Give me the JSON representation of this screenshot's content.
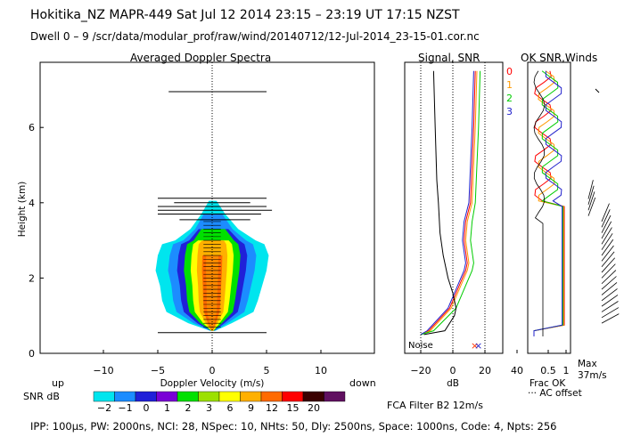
{
  "header": {
    "line1": "Hokitika_NZ   MAPR-449   Sat Jul 12 2014 23:15 – 23:19 UT 17:15 NZST",
    "line2": "Dwell   0 –  9    /scr/data/modular_prof/raw/wind/20140712/12-Jul-2014_23-15-01.cor.nc"
  },
  "footer": {
    "params": "IPP: 100μs,  PW: 2000ns,  NCI:  28,  NSpec: 10,  NHts: 50,  Dly: 2500ns,  Space: 1000ns,  Code: 4,  Npts: 256",
    "filter": "FCA Filter B2 12m/s"
  },
  "colorbar": {
    "label": "SNR dB",
    "values": [
      "−2",
      "−1",
      "0",
      "1",
      "2",
      "3",
      "6",
      "9",
      "12",
      "15",
      "20"
    ],
    "colors": [
      "#00e5ee",
      "#1c8cff",
      "#2020d8",
      "#7a00d6",
      "#00e000",
      "#9ce000",
      "#ffff00",
      "#ffb000",
      "#ff6a00",
      "#ff0000",
      "#3a0000",
      "#601060"
    ]
  },
  "chart_data": [
    {
      "type": "heatmap",
      "title": "Averaged Doppler Spectra",
      "xlabel": "Doppler Velocity (m/s)",
      "ylabel": "Height (km)",
      "xlim": [
        -18,
        15
      ],
      "ylim": [
        0,
        7.7
      ],
      "xticks": [
        "−10",
        "−5",
        "0",
        "5",
        "10"
      ],
      "yticks": [
        "0",
        "2",
        "4",
        "6"
      ],
      "x_side_labels": {
        "left": "up",
        "right": "down"
      },
      "profiles": [
        {
          "h": 0.6,
          "lo": -0.2,
          "hi": 0.3
        },
        {
          "h": 0.8,
          "lo": -2.2,
          "hi": 1.8
        },
        {
          "h": 1.1,
          "lo": -4.2,
          "hi": 3.8
        },
        {
          "h": 1.4,
          "lo": -4.6,
          "hi": 4.2
        },
        {
          "h": 1.8,
          "lo": -4.8,
          "hi": 4.6
        },
        {
          "h": 2.2,
          "lo": -5.2,
          "hi": 5.0
        },
        {
          "h": 2.6,
          "lo": -5.0,
          "hi": 5.2
        },
        {
          "h": 2.9,
          "lo": -4.6,
          "hi": 4.8
        },
        {
          "h": 3.0,
          "lo": -3.4,
          "hi": 4.0
        },
        {
          "h": 3.3,
          "lo": -2.0,
          "hi": 2.4
        },
        {
          "h": 3.7,
          "lo": -1.0,
          "hi": 1.2
        },
        {
          "h": 4.05,
          "lo": -0.3,
          "hi": 0.4
        }
      ],
      "velocity_bars": [
        {
          "h": 0.55,
          "lo": -5,
          "hi": 5
        },
        {
          "h": 3.55,
          "lo": -3,
          "hi": 3.5
        },
        {
          "h": 3.7,
          "lo": -5,
          "hi": 4.5
        },
        {
          "h": 3.8,
          "lo": -5,
          "hi": 5.5
        },
        {
          "h": 3.9,
          "lo": -5,
          "hi": 5
        },
        {
          "h": 4.0,
          "lo": -3.5,
          "hi": 3.5
        },
        {
          "h": 4.12,
          "lo": -5,
          "hi": 5
        },
        {
          "h": 6.95,
          "lo": -4,
          "hi": 5
        }
      ]
    },
    {
      "type": "line",
      "title": "Signal, SNR",
      "xlabel": "dB",
      "xlim": [
        -30,
        35
      ],
      "ylim": [
        0,
        7.7
      ],
      "xticks": [
        "−20",
        "0",
        "20",
        "40"
      ],
      "annotation": "Noise",
      "series": [
        {
          "name": "0",
          "color": "#ff0000",
          "x": [
            14,
            13,
            11,
            8,
            7,
            9,
            8,
            4,
            -2,
            -15,
            -20
          ],
          "y": [
            7.5,
            6,
            4,
            3.5,
            3,
            2.4,
            2.2,
            1.8,
            1.2,
            0.6,
            0.5
          ]
        },
        {
          "name": "1",
          "color": "#ff9900",
          "x": [
            15,
            14,
            12,
            9,
            8,
            10,
            9,
            5,
            -1,
            -14,
            -20
          ],
          "y": [
            7.5,
            6,
            4,
            3.5,
            3,
            2.4,
            2.2,
            1.8,
            1.2,
            0.6,
            0.5
          ]
        },
        {
          "name": "2",
          "color": "#00cc00",
          "x": [
            17,
            16,
            14,
            12,
            11,
            13,
            12,
            8,
            2,
            -12,
            -20
          ],
          "y": [
            7.5,
            6,
            4,
            3.5,
            3,
            2.4,
            2.2,
            1.8,
            1.2,
            0.6,
            0.5
          ]
        },
        {
          "name": "3",
          "color": "#2222cc",
          "x": [
            13,
            12,
            10,
            7,
            6,
            8,
            7,
            3,
            -3,
            -16,
            -20
          ],
          "y": [
            7.5,
            6,
            4,
            3.5,
            3,
            2.4,
            2.2,
            1.8,
            1.2,
            0.6,
            0.5
          ]
        },
        {
          "name": "",
          "color": "#000000",
          "x": [
            -12,
            -11,
            -10,
            -9,
            -8,
            -6,
            -3,
            0,
            2,
            1,
            -5,
            -18
          ],
          "y": [
            7.5,
            6,
            4.6,
            4,
            3.2,
            2.6,
            2.0,
            1.6,
            1.2,
            1.0,
            0.6,
            0.5
          ]
        }
      ]
    },
    {
      "type": "line",
      "title": "OK SNR,Winds",
      "xlabel": "Frac OK",
      "xticks": [
        "0.5",
        "1"
      ],
      "legend_line": "AC offset",
      "max_wind": "Max\n37m/s",
      "series": [
        {
          "name": "0",
          "color": "#ff0000"
        },
        {
          "name": "1",
          "color": "#ff9900"
        },
        {
          "name": "2",
          "color": "#00cc00"
        },
        {
          "name": "3",
          "color": "#2222cc"
        }
      ]
    }
  ]
}
